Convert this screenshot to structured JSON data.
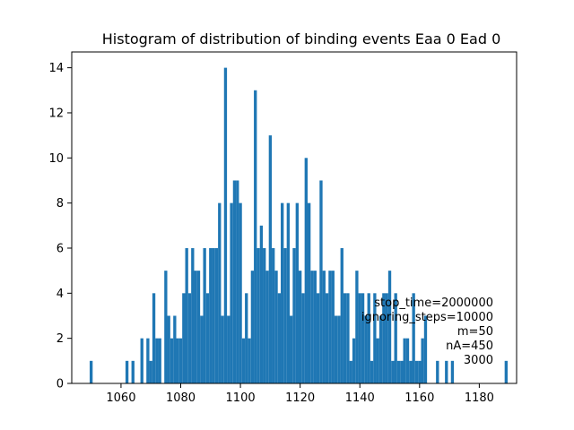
{
  "chart_data": {
    "type": "bar",
    "title": "Histogram of distribution of binding events Eaa 0 Ead 0",
    "xlabel": "",
    "ylabel": "",
    "xlim": [
      1043.5,
      1192.5
    ],
    "ylim": [
      0,
      14.7
    ],
    "xticks": [
      1060,
      1080,
      1100,
      1120,
      1140,
      1160,
      1180
    ],
    "yticks": [
      0,
      2,
      4,
      6,
      8,
      10,
      12,
      14
    ],
    "bar_color": "#1f77b4",
    "bin_width": 1,
    "grid": false,
    "x": [
      1050,
      1062,
      1064,
      1067,
      1069,
      1070,
      1071,
      1072,
      1073,
      1075,
      1076,
      1077,
      1078,
      1079,
      1080,
      1081,
      1082,
      1083,
      1084,
      1085,
      1086,
      1087,
      1088,
      1089,
      1090,
      1091,
      1092,
      1093,
      1094,
      1095,
      1096,
      1097,
      1098,
      1099,
      1100,
      1101,
      1102,
      1103,
      1104,
      1105,
      1106,
      1107,
      1108,
      1109,
      1110,
      1111,
      1112,
      1113,
      1114,
      1115,
      1116,
      1117,
      1118,
      1119,
      1120,
      1121,
      1122,
      1123,
      1124,
      1125,
      1126,
      1127,
      1128,
      1129,
      1130,
      1131,
      1132,
      1133,
      1134,
      1135,
      1136,
      1137,
      1138,
      1139,
      1140,
      1141,
      1142,
      1143,
      1144,
      1145,
      1146,
      1147,
      1148,
      1149,
      1150,
      1151,
      1152,
      1153,
      1154,
      1155,
      1156,
      1157,
      1158,
      1159,
      1160,
      1161,
      1162,
      1166,
      1169,
      1171,
      1189
    ],
    "values": [
      1,
      1,
      1,
      2,
      2,
      1,
      4,
      2,
      2,
      5,
      3,
      2,
      3,
      2,
      2,
      4,
      6,
      4,
      6,
      5,
      5,
      3,
      6,
      4,
      6,
      6,
      6,
      8,
      3,
      14,
      3,
      8,
      9,
      9,
      8,
      2,
      4,
      2,
      5,
      13,
      6,
      7,
      6,
      5,
      11,
      6,
      5,
      4,
      8,
      6,
      8,
      3,
      6,
      8,
      5,
      4,
      10,
      8,
      5,
      5,
      4,
      9,
      5,
      4,
      5,
      5,
      3,
      3,
      6,
      4,
      4,
      1,
      2,
      5,
      4,
      4,
      3,
      4,
      1,
      4,
      2,
      3,
      4,
      4,
      5,
      1,
      4,
      1,
      1,
      2,
      2,
      1,
      4,
      1,
      1,
      2,
      3,
      1,
      1,
      1,
      1
    ],
    "annotations": [
      "stop_time=2000000",
      "ignoring_steps=10000",
      "m=50",
      "nA=450",
      "3000"
    ]
  }
}
